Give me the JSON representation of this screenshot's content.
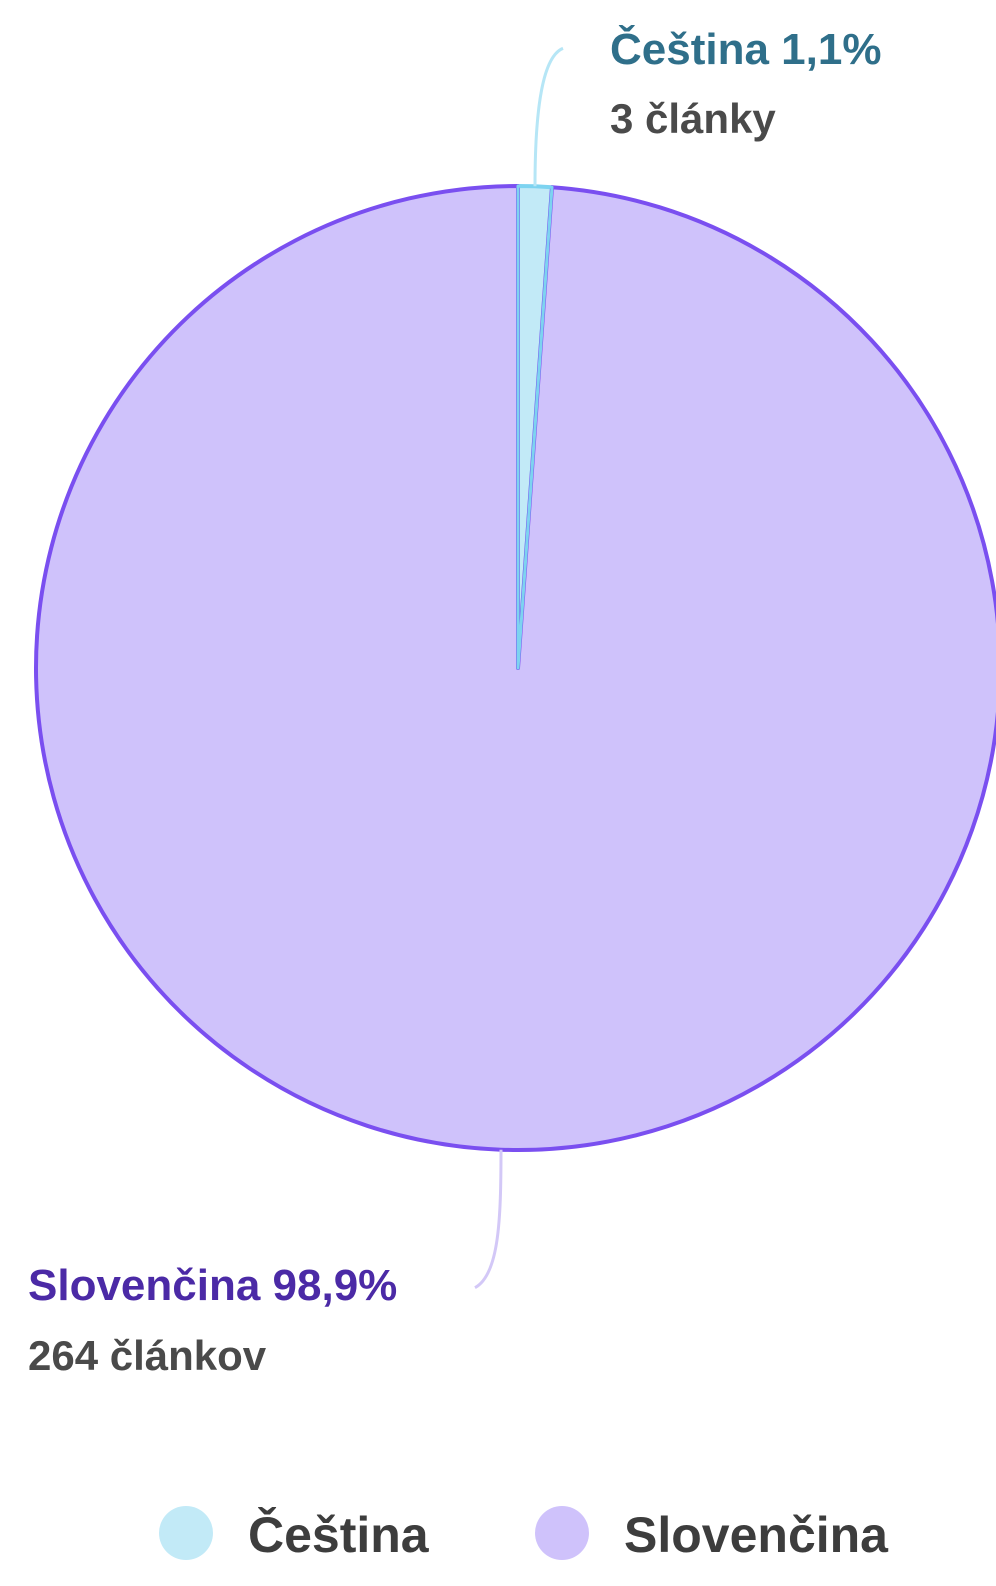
{
  "chart_data": {
    "type": "pie",
    "series": [
      {
        "name": "Čeština",
        "value": 3,
        "percent": 1.1,
        "label": "Čeština 1,1%",
        "count_label": "3 články",
        "fill_color": "#c2eaf7",
        "stroke_color": "#7dd3f0",
        "label_color": "#2f6f8a",
        "connector_color": "#b6e6f6"
      },
      {
        "name": "Slovenčina",
        "value": 264,
        "percent": 98.9,
        "label": "Slovenčina 98,9%",
        "count_label": "264 článkov",
        "fill_color": "#cfc2fb",
        "stroke_color": "#7a4ff0",
        "label_color": "#4b2aa6",
        "connector_color": "#d3c8f7"
      }
    ],
    "legend": {
      "position": "bottom",
      "entries": [
        "Čeština",
        "Slovenčina"
      ]
    }
  }
}
